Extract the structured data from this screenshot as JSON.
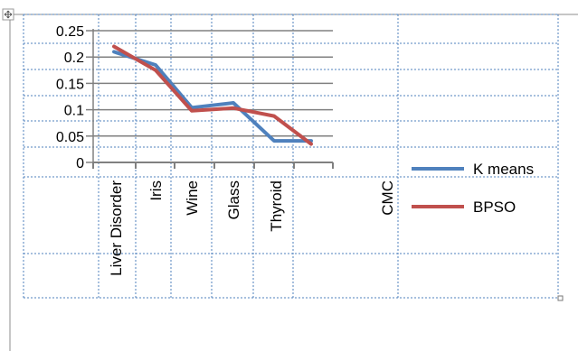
{
  "chart_data": {
    "type": "line",
    "categories": [
      "Liver Disorder",
      "Iris",
      "Wine",
      "Glass",
      "Thyroid",
      "CMC"
    ],
    "series": [
      {
        "name": "K means",
        "color": "#4f81bd",
        "values": [
          0.21,
          0.185,
          0.104,
          0.113,
          0.041,
          0.041
        ]
      },
      {
        "name": "BPSO",
        "color": "#c0504d",
        "values": [
          0.22,
          0.175,
          0.098,
          0.103,
          0.088,
          0.035
        ]
      }
    ],
    "y_ticks": [
      "0.25",
      "0.2",
      "0.15",
      "0.1",
      "0.05",
      "0"
    ],
    "ylim": [
      0,
      0.25
    ],
    "grid": true,
    "legend": "right"
  }
}
